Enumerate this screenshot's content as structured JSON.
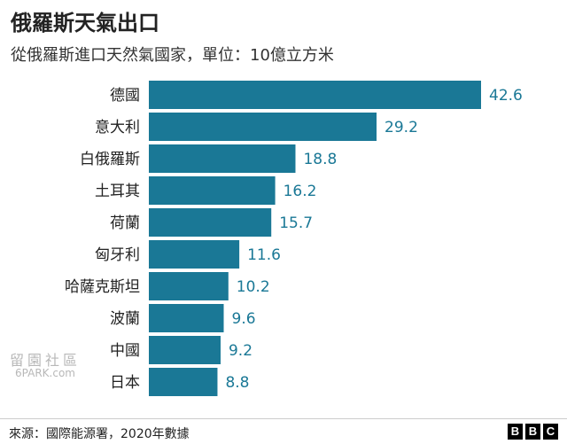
{
  "header": {
    "title": "俄羅斯天氣出口",
    "subtitle": "從俄羅斯進口天然氣國家，單位：10億立方米"
  },
  "colors": {
    "bar": "#1a7896",
    "value_text": "#1a7896"
  },
  "chart_data": {
    "type": "bar",
    "orientation": "horizontal",
    "categories": [
      "德國",
      "意大利",
      "白俄羅斯",
      "土耳其",
      "荷蘭",
      "匈牙利",
      "哈薩克斯坦",
      "波蘭",
      "中國",
      "日本"
    ],
    "values": [
      42.6,
      29.2,
      18.8,
      16.2,
      15.7,
      11.6,
      10.2,
      9.6,
      9.2,
      8.8
    ],
    "value_labels": [
      "42.6",
      "29.2",
      "18.8",
      "16.2",
      "15.7",
      "11.6",
      "10.2",
      "9.6",
      "9.2",
      "8.8"
    ],
    "title": "俄羅斯天氣出口",
    "subtitle": "從俄羅斯進口天然氣國家，單位：10億立方米",
    "xlim": [
      0,
      42.6
    ],
    "grid": false
  },
  "watermark": {
    "line1": "留園社區",
    "line2": "6PARK.com"
  },
  "footer": {
    "source": "來源：國際能源署，2020年數據",
    "logo_letters": [
      "B",
      "B",
      "C"
    ]
  }
}
